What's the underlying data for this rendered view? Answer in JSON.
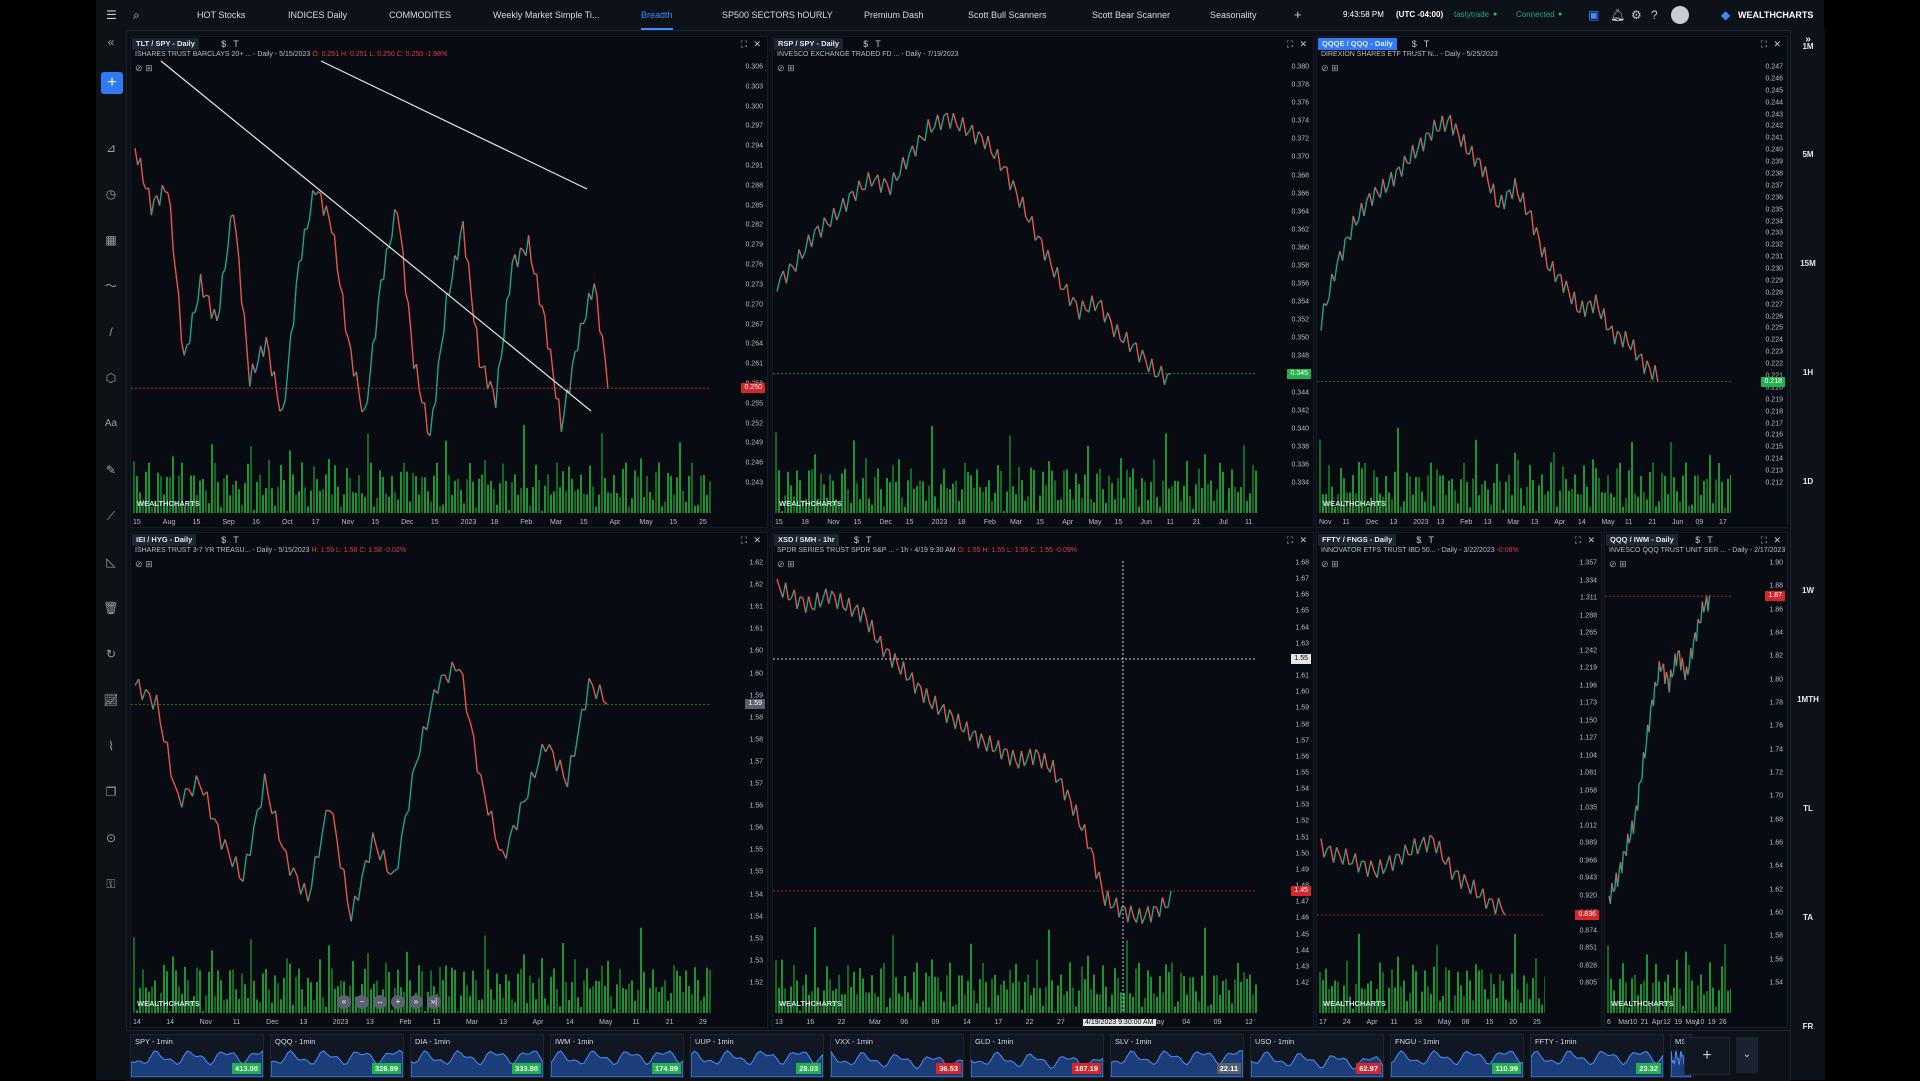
{
  "topbar": {
    "tabs": [
      {
        "label": "HOT Stocks"
      },
      {
        "label": "INDICES Daily"
      },
      {
        "label": "COMMODITES"
      },
      {
        "label": "Weekly Market Simple Ti..."
      },
      {
        "label": "Breadth"
      },
      {
        "label": "SP500 SECTORS hOURLY"
      },
      {
        "label": "Premium Dash"
      },
      {
        "label": "Scott Bull Scanners"
      },
      {
        "label": "Scott Bear Scanner"
      },
      {
        "label": "Seasonality"
      }
    ],
    "active_tab": "Breadth",
    "add_tab": "+",
    "time": "9:43:58 PM",
    "timezone": "(UTC -04:00)",
    "broker": "tastytrade",
    "status": "Connected",
    "brand": "WEALTHCHARTS"
  },
  "timeframes": [
    "1M",
    "5M",
    "15M",
    "1H",
    "1D",
    "1W",
    "1MTH",
    "TL",
    "TA",
    "FR"
  ],
  "watermark": "WEALTHCHARTS",
  "colors": {
    "up": "#21a38b",
    "down": "#e8564a",
    "vol_up": "#1fae3b",
    "vol_down": "#147a2a",
    "accent": "#2f7bf5",
    "red_tag": "#d4262b",
    "green_tag": "#22b14c"
  },
  "panes": [
    {
      "symbol": "TLT / SPY - Daily",
      "desc": "ISHARES TRUST BARCLAYS 20+ ... - Daily - 5/15/2023",
      "ohlc": "O: 0.251  H: 0.251  L: 0.250  C: 0.250  -1.98%",
      "y_ticks": [
        "0.306",
        "0.303",
        "0.300",
        "0.297",
        "0.294",
        "0.291",
        "0.288",
        "0.285",
        "0.282",
        "0.279",
        "0.276",
        "0.273",
        "0.270",
        "0.267",
        "0.264",
        "0.261",
        "0.258",
        "0.255",
        "0.252",
        "0.249",
        "0.246",
        "0.243"
      ],
      "x_ticks": [
        "15",
        "Aug",
        "15",
        "Sep",
        "16",
        "Oct",
        "17",
        "Nov",
        "15",
        "Dec",
        "15",
        "2023",
        "18",
        "Feb",
        "Mar",
        "15",
        "Apr",
        "May",
        "15",
        "25"
      ],
      "last": "0.250",
      "last_color": "red"
    },
    {
      "symbol": "RSP / SPY - Daily",
      "desc": "INVESCO EXCHANGE TRADED FD ... - Daily - 7/19/2023",
      "ohlc": "",
      "y_ticks": [
        "0.380",
        "0.378",
        "0.376",
        "0.374",
        "0.372",
        "0.370",
        "0.368",
        "0.366",
        "0.364",
        "0.362",
        "0.360",
        "0.358",
        "0.356",
        "0.354",
        "0.352",
        "0.350",
        "0.348",
        "0.346",
        "0.344",
        "0.342",
        "0.340",
        "0.338",
        "0.336",
        "0.334"
      ],
      "x_ticks": [
        "15",
        "18",
        "Nov",
        "15",
        "Dec",
        "15",
        "2023",
        "18",
        "Feb",
        "Mar",
        "15",
        "Apr",
        "May",
        "15",
        "Jun",
        "11",
        "21",
        "Jul",
        "11"
      ],
      "last": "0.345",
      "last_color": "green"
    },
    {
      "symbol": "QQQE / QQQ - Daily",
      "desc": "DIREXION SHARES ETF TRUST N... - Daily - 5/25/2023",
      "ohlc": "",
      "y_ticks": [
        "0.247",
        "0.246",
        "0.245",
        "0.244",
        "0.243",
        "0.242",
        "0.241",
        "0.240",
        "0.239",
        "0.238",
        "0.237",
        "0.236",
        "0.235",
        "0.234",
        "0.233",
        "0.232",
        "0.231",
        "0.230",
        "0.229",
        "0.228",
        "0.227",
        "0.226",
        "0.225",
        "0.224",
        "0.223",
        "0.222",
        "0.221",
        "0.220",
        "0.219",
        "0.218",
        "0.217",
        "0.216",
        "0.215",
        "0.214",
        "0.213",
        "0.212"
      ],
      "x_ticks": [
        "Nov",
        "11",
        "Dec",
        "13",
        "2023",
        "13",
        "Feb",
        "13",
        "Mar",
        "13",
        "Apr",
        "14",
        "May",
        "11",
        "21",
        "Jun",
        "09",
        "17"
      ],
      "last": "0.218",
      "last_color": "green"
    },
    {
      "symbol": "IEI / HYG - Daily",
      "desc": "ISHARES TRUST 3-7 YR TREASU... - Daily - 5/15/2023",
      "ohlc": "H: 1.59  L: 1.58  C: 1.58  -0.02%",
      "y_ticks": [
        "1.62",
        "1.62",
        "1.61",
        "1.61",
        "1.60",
        "1.60",
        "1.59",
        "1.58",
        "1.58",
        "1.57",
        "1.57",
        "1.56",
        "1.56",
        "1.55",
        "1.55",
        "1.54",
        "1.54",
        "1.53",
        "1.53",
        "1.52"
      ],
      "x_ticks": [
        "14",
        "14",
        "Nov",
        "11",
        "Dec",
        "13",
        "2023",
        "13",
        "Feb",
        "13",
        "Mar",
        "13",
        "Apr",
        "14",
        "May",
        "11",
        "21",
        "29"
      ],
      "last": "1.59",
      "last_color": "gray"
    },
    {
      "symbol": "XSD / SMH - 1hr",
      "desc": "SPDR SERIES TRUST SPDR S&P ... - 1h - 4/19 9:30 AM",
      "ohlc": "O: 1.55  H: 1.55  L: 1.55  C: 1.55  -0.09%",
      "y_ticks": [
        "1.68",
        "1.67",
        "1.66",
        "1.65",
        "1.64",
        "1.63",
        "1.62",
        "1.61",
        "1.60",
        "1.59",
        "1.58",
        "1.57",
        "1.56",
        "1.55",
        "1.54",
        "1.53",
        "1.52",
        "1.51",
        "1.50",
        "1.49",
        "1.48",
        "1.47",
        "1.46",
        "1.45",
        "1.44",
        "1.43",
        "1.42"
      ],
      "x_ticks": [
        "13",
        "16",
        "22",
        "Mar",
        "06",
        "09",
        "14",
        "17",
        "22",
        "27",
        "Apr",
        "06",
        "May",
        "04",
        "09",
        "12"
      ],
      "last": "1.45",
      "last_color": "red",
      "cross_price": "1.55",
      "cross_time": "4/19/2023 9:30:00 AM"
    },
    {
      "symbol": "FFTY / FNGS - Daily",
      "desc": "INNOVATOR ETFS TRUST IBD 50... - Daily - 3/22/2023",
      "ohlc": "-0.08%",
      "y_ticks": [
        "1.357",
        "1.334",
        "1.311",
        "1.288",
        "1.265",
        "1.242",
        "1.219",
        "1.196",
        "1.173",
        "1.150",
        "1.127",
        "1.104",
        "1.081",
        "1.058",
        "1.035",
        "1.012",
        "0.989",
        "0.966",
        "0.943",
        "0.920",
        "0.897",
        "0.874",
        "0.851",
        "0.828",
        "0.805"
      ],
      "x_ticks": [
        "17",
        "24",
        "Apr",
        "11",
        "18",
        "May",
        "08",
        "15",
        "20",
        "25"
      ],
      "last": "0.836",
      "last_color": "red"
    },
    {
      "symbol": "QQQ / IWM - Daily",
      "desc": "INVESCO QQQ TRUST UNIT SER ... - Daily - 2/17/2023",
      "ohlc": "-0.18%",
      "y_ticks": [
        "1.90",
        "1.88",
        "1.86",
        "1.84",
        "1.82",
        "1.80",
        "1.78",
        "1.76",
        "1.74",
        "1.72",
        "1.70",
        "1.68",
        "1.66",
        "1.64",
        "1.62",
        "1.60",
        "1.58",
        "1.56",
        "1.54"
      ],
      "x_ticks": [
        "6",
        "Mar",
        "10",
        "21",
        "Apr",
        "12",
        "19",
        "May",
        "10",
        "19",
        "26"
      ],
      "last": "1.87",
      "last_color": "red"
    }
  ],
  "nav_buttons": [
    "«",
    "−",
    "↔",
    "+",
    "»",
    "»|"
  ],
  "watchlist": [
    {
      "name": "SPY - 1min",
      "price": "413.00",
      "color": "green"
    },
    {
      "name": "QQQ - 1min",
      "price": "326.89",
      "color": "green"
    },
    {
      "name": "DIA - 1min",
      "price": "333.80",
      "color": "green"
    },
    {
      "name": "IWM - 1min",
      "price": "174.89",
      "color": "green"
    },
    {
      "name": "UUP - 1min",
      "price": "28.03",
      "color": "green"
    },
    {
      "name": "VXX - 1min",
      "price": "36.53",
      "color": "red"
    },
    {
      "name": "GLD - 1min",
      "price": "187.19",
      "color": "red"
    },
    {
      "name": "SLV - 1min",
      "price": "22.11",
      "color": "gray"
    },
    {
      "name": "USO - 1min",
      "price": "62.97",
      "color": "red"
    },
    {
      "name": "FNGU - 1min",
      "price": "110.99",
      "color": "green"
    },
    {
      "name": "FFTY - 1min",
      "price": "23.32",
      "color": "green"
    },
    {
      "name": "MS",
      "price": "",
      "color": "gray"
    }
  ],
  "watchlist_add": "+"
}
